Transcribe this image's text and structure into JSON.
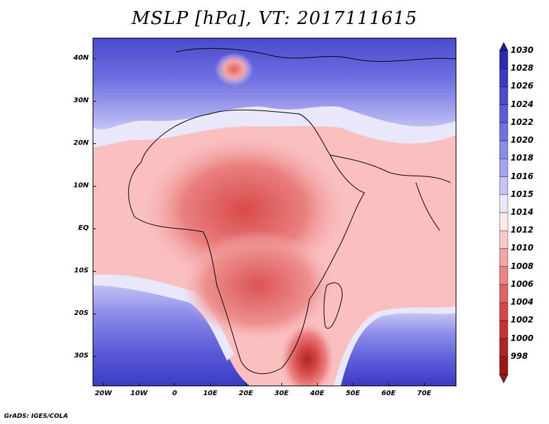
{
  "title": "MSLP [hPa], VT: 2017111615",
  "credit": "GrADS: IGES/COLA",
  "map": {
    "lon_range": [
      -23,
      79
    ],
    "lat_range": [
      -37,
      45
    ],
    "lon_ticks": [
      {
        "lon": -20,
        "label": "20W"
      },
      {
        "lon": -10,
        "label": "10W"
      },
      {
        "lon": 0,
        "label": "0"
      },
      {
        "lon": 10,
        "label": "10E"
      },
      {
        "lon": 20,
        "label": "20E"
      },
      {
        "lon": 30,
        "label": "30E"
      },
      {
        "lon": 40,
        "label": "40E"
      },
      {
        "lon": 50,
        "label": "50E"
      },
      {
        "lon": 60,
        "label": "60E"
      },
      {
        "lon": 70,
        "label": "70E"
      }
    ],
    "lat_ticks": [
      {
        "lat": 40,
        "label": "40N"
      },
      {
        "lat": 30,
        "label": "30N"
      },
      {
        "lat": 20,
        "label": "20N"
      },
      {
        "lat": 10,
        "label": "10N"
      },
      {
        "lat": 0,
        "label": "EQ"
      },
      {
        "lat": -10,
        "label": "10S"
      },
      {
        "lat": -20,
        "label": "20S"
      },
      {
        "lat": -30,
        "label": "30S"
      }
    ]
  },
  "colorbar": {
    "levels": [
      "1030",
      "1028",
      "1026",
      "1024",
      "1022",
      "1020",
      "1018",
      "1016",
      "1015",
      "1014",
      "1012",
      "1010",
      "1008",
      "1006",
      "1004",
      "1002",
      "1000",
      "998"
    ],
    "colors": [
      "#1c1c9c",
      "#2a2ab0",
      "#3a3ac2",
      "#4a4ad0",
      "#5c5cda",
      "#7070e2",
      "#8a8ae8",
      "#a4a4ee",
      "#c4c4f4",
      "#e8e8fa",
      "#ffeaea",
      "#fcc8c8",
      "#f4a4a4",
      "#ec8484",
      "#e06464",
      "#d44848",
      "#c43434",
      "#b02424",
      "#9a1818"
    ]
  }
}
